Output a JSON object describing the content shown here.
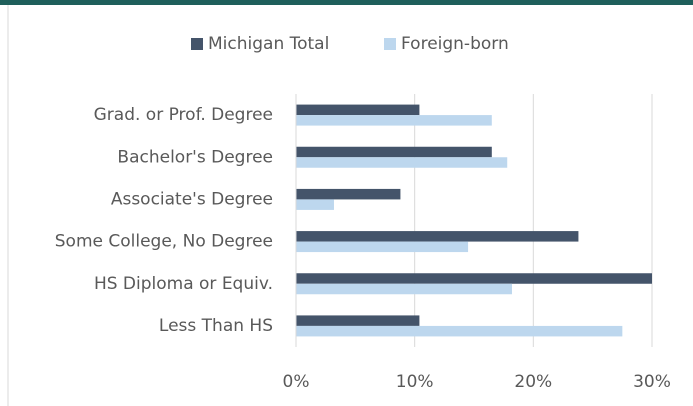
{
  "chart_data": {
    "type": "hbar",
    "categories": [
      "Grad. or Prof. Degree",
      "Bachelor's Degree",
      "Associate's Degree",
      "Some College, No Degree",
      "HS Diploma or Equiv.",
      "Less Than HS"
    ],
    "series": [
      {
        "name": "Michigan Total",
        "color": "#44546a",
        "values": [
          10.4,
          16.5,
          8.8,
          23.8,
          30.0,
          10.4
        ]
      },
      {
        "name": "Foreign-born",
        "color": "#bdd7ee",
        "values": [
          16.5,
          17.8,
          3.2,
          14.5,
          18.2,
          27.5
        ]
      }
    ],
    "xlim": [
      0,
      30
    ],
    "xticks": [
      {
        "value": 0,
        "label": "0%"
      },
      {
        "value": 10,
        "label": "10%"
      },
      {
        "value": 20,
        "label": "20%"
      },
      {
        "value": 30,
        "label": "30%"
      }
    ],
    "grid": true,
    "legend": "top"
  }
}
